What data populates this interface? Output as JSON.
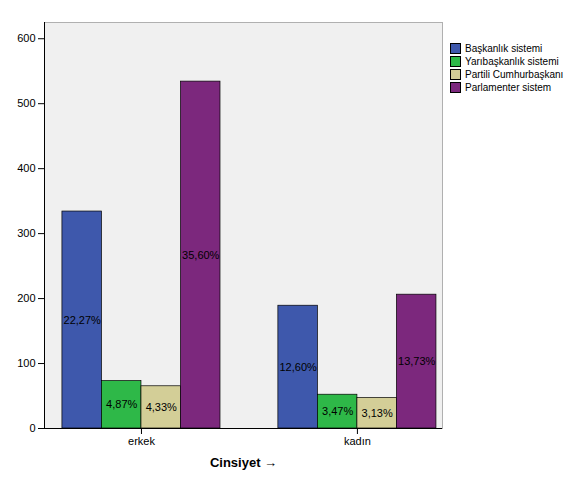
{
  "chart_data": {
    "type": "bar",
    "xlabel": "Cinsiyet",
    "categories": [
      "erkek",
      "kadın"
    ],
    "series": [
      {
        "name": "Başkanlık sistemi",
        "color": "#3E58AC",
        "values": [
          334,
          189
        ],
        "percentage_labels": [
          "22,27%",
          "12,60%"
        ]
      },
      {
        "name": "Yarıbaşkanlık sistemi",
        "color": "#2EB848",
        "values": [
          73,
          52
        ],
        "percentage_labels": [
          "4,87%",
          "3,47%"
        ]
      },
      {
        "name": "Partili Cumhurbaşkanı",
        "color": "#D3CE97",
        "values": [
          65,
          47
        ],
        "percentage_labels": [
          "4,33%",
          "3,13%"
        ]
      },
      {
        "name": "Parlamenter sistem",
        "color": "#7C287D",
        "values": [
          534,
          206
        ],
        "percentage_labels": [
          "35,60%",
          "13,73%"
        ]
      }
    ],
    "ylim": [
      0,
      625
    ],
    "yticks": [
      0,
      100,
      200,
      300,
      400,
      500,
      600
    ],
    "grid": false,
    "legend": "right"
  }
}
